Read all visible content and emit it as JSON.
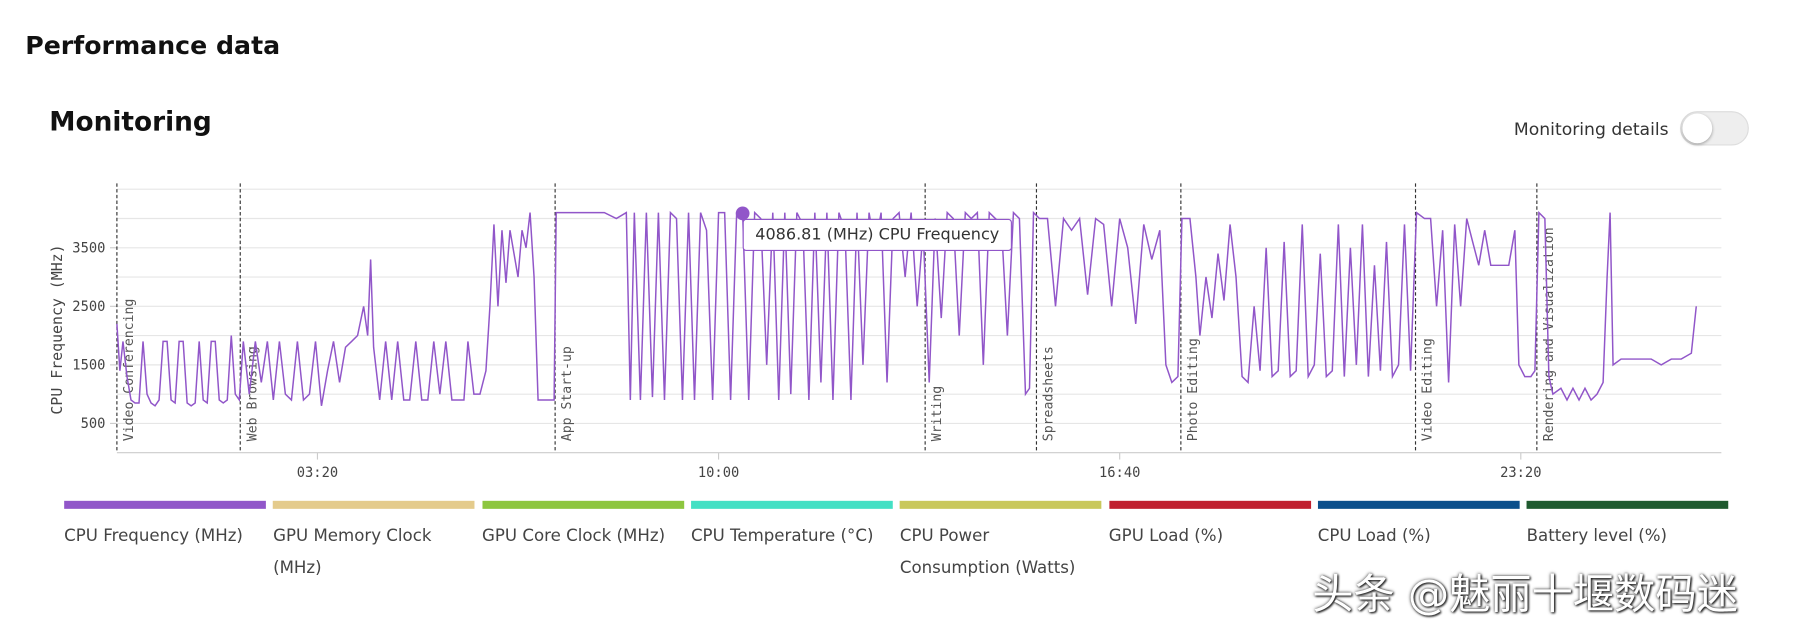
{
  "page_title": "Performance data",
  "section_title": "Monitoring",
  "toggle_label": "Monitoring details",
  "tooltip": "4086.81 (MHz) CPU Frequency",
  "watermark": "头条 @魅丽十堰数码迷",
  "chart_data": {
    "type": "line",
    "ylabel": "CPU Frequency (MHz)",
    "xlim": [
      0,
      1600
    ],
    "ylim": [
      0,
      4600
    ],
    "yticks": [
      500,
      1500,
      2500,
      3500
    ],
    "y_gridlines": [
      500,
      1000,
      1500,
      2000,
      2500,
      3000,
      3500,
      4000,
      4500
    ],
    "xticks": [
      {
        "value": 200,
        "label": "03:20"
      },
      {
        "value": 600,
        "label": "10:00"
      },
      {
        "value": 1000,
        "label": "16:40"
      },
      {
        "value": 1400,
        "label": "23:20"
      }
    ],
    "grid": true,
    "annotations": [
      {
        "x": 0,
        "text": "Video Conferencing"
      },
      {
        "x": 123,
        "text": "Web Browsing"
      },
      {
        "x": 437,
        "text": "App Start-up"
      },
      {
        "x": 806,
        "text": "Writing"
      },
      {
        "x": 917,
        "text": "Spreadsheets"
      },
      {
        "x": 1061,
        "text": "Photo Editing"
      },
      {
        "x": 1295,
        "text": "Video Editing"
      },
      {
        "x": 1416,
        "text": "Rendering and Visualization"
      }
    ],
    "legend": [
      {
        "name": "CPU Frequency (MHz)",
        "color": "#9156c9"
      },
      {
        "name": "GPU Memory Clock (MHz)",
        "color": "#e4cb8c"
      },
      {
        "name": "GPU Core Clock (MHz)",
        "color": "#8dc63f"
      },
      {
        "name": "CPU Temperature (°C)",
        "color": "#43e0c4"
      },
      {
        "name": "CPU Power Consumption (Watts)",
        "color": "#c9c85c"
      },
      {
        "name": "GPU Load (%)",
        "color": "#c0202f"
      },
      {
        "name": "CPU Load (%)",
        "color": "#0b4f8b"
      },
      {
        "name": "Battery level (%)",
        "color": "#1f5a2f"
      }
    ],
    "series": [
      {
        "name": "CPU Frequency (MHz)",
        "color": "#9156c9",
        "x": [
          0,
          3,
          6,
          10,
          14,
          18,
          22,
          26,
          30,
          34,
          38,
          42,
          46,
          50,
          54,
          58,
          62,
          66,
          70,
          74,
          78,
          82,
          86,
          90,
          94,
          98,
          102,
          106,
          110,
          114,
          118,
          122,
          126,
          132,
          138,
          144,
          150,
          156,
          162,
          168,
          174,
          180,
          186,
          192,
          198,
          204,
          210,
          216,
          222,
          228,
          234,
          240,
          246,
          250,
          253,
          256,
          262,
          268,
          274,
          280,
          286,
          292,
          298,
          304,
          310,
          316,
          322,
          328,
          334,
          340,
          346,
          350,
          356,
          362,
          368,
          372,
          376,
          380,
          384,
          388,
          392,
          396,
          400,
          404,
          408,
          412,
          416,
          420,
          426,
          432,
          436,
          438,
          450,
          462,
          474,
          486,
          498,
          508,
          512,
          516,
          522,
          528,
          534,
          540,
          546,
          552,
          558,
          564,
          570,
          576,
          582,
          588,
          594,
          600,
          606,
          612,
          618,
          624,
          630,
          636,
          642,
          648,
          654,
          660,
          666,
          672,
          678,
          684,
          690,
          696,
          702,
          708,
          714,
          720,
          726,
          732,
          738,
          744,
          750,
          756,
          762,
          768,
          774,
          780,
          786,
          792,
          798,
          804,
          810,
          816,
          822,
          828,
          834,
          840,
          846,
          852,
          858,
          864,
          870,
          876,
          882,
          888,
          894,
          900,
          906,
          910,
          914,
          920,
          928,
          936,
          944,
          952,
          960,
          968,
          976,
          984,
          992,
          1000,
          1008,
          1016,
          1024,
          1032,
          1040,
          1046,
          1052,
          1058,
          1062,
          1070,
          1076,
          1080,
          1086,
          1092,
          1098,
          1104,
          1110,
          1116,
          1122,
          1128,
          1134,
          1140,
          1146,
          1152,
          1158,
          1164,
          1170,
          1176,
          1182,
          1188,
          1194,
          1200,
          1206,
          1212,
          1218,
          1224,
          1230,
          1236,
          1242,
          1248,
          1254,
          1260,
          1266,
          1272,
          1278,
          1284,
          1290,
          1296,
          1304,
          1310,
          1316,
          1322,
          1328,
          1334,
          1340,
          1346,
          1352,
          1358,
          1364,
          1370,
          1376,
          1382,
          1388,
          1394,
          1398,
          1404,
          1410,
          1414,
          1418,
          1424,
          1428,
          1432,
          1440,
          1446,
          1452,
          1458,
          1464,
          1470,
          1476,
          1482,
          1486,
          1489,
          1492,
          1500,
          1510,
          1520,
          1530,
          1540,
          1550,
          1560,
          1570,
          1575
        ],
        "values": [
          2200,
          1400,
          1900,
          1300,
          900,
          850,
          850,
          1900,
          1000,
          850,
          800,
          900,
          1900,
          1900,
          900,
          850,
          1900,
          1900,
          850,
          800,
          850,
          1900,
          900,
          850,
          1900,
          1900,
          900,
          850,
          900,
          2000,
          1000,
          900,
          1900,
          1000,
          1900,
          1200,
          1900,
          900,
          1900,
          1000,
          900,
          1900,
          900,
          1000,
          1900,
          800,
          1400,
          1900,
          1200,
          1800,
          1900,
          2000,
          2500,
          2000,
          3300,
          1800,
          900,
          1900,
          900,
          1900,
          900,
          900,
          1900,
          900,
          900,
          1900,
          1000,
          1900,
          900,
          900,
          900,
          1900,
          1000,
          1000,
          1400,
          2500,
          3900,
          2500,
          3800,
          2900,
          3800,
          3400,
          3000,
          3800,
          3500,
          4100,
          3000,
          900,
          900,
          900,
          900,
          4100,
          4100,
          4100,
          4100,
          4100,
          4000,
          4100,
          900,
          4100,
          900,
          4100,
          950,
          4100,
          900,
          4100,
          4000,
          900,
          4100,
          900,
          4100,
          3800,
          900,
          4100,
          4100,
          900,
          4100,
          4086.81,
          900,
          4100,
          4000,
          1500,
          4100,
          900,
          4100,
          1000,
          4100,
          3900,
          900,
          4100,
          1200,
          4100,
          900,
          4100,
          3800,
          900,
          4100,
          1500,
          4100,
          3500,
          4100,
          1200,
          4000,
          4100,
          3000,
          4100,
          2500,
          3800,
          1200,
          4000,
          2300,
          4100,
          4000,
          2000,
          4100,
          4000,
          4100,
          1500,
          4100,
          4000,
          3900,
          2000,
          4100,
          4000,
          1000,
          1100,
          4100,
          4000,
          4000,
          2500,
          4000,
          3800,
          4000,
          2700,
          4000,
          3900,
          2500,
          4000,
          3500,
          2200,
          3900,
          3300,
          3800,
          1500,
          1200,
          1300,
          4000,
          4000,
          3000,
          2000,
          3000,
          2300,
          3400,
          2600,
          3900,
          3000,
          1300,
          1200,
          2500,
          1400,
          3500,
          1300,
          1400,
          3600,
          1300,
          1400,
          3900,
          1300,
          1500,
          3400,
          1300,
          1400,
          3900,
          1300,
          3500,
          1500,
          3900,
          1300,
          3200,
          1400,
          3600,
          1300,
          1500,
          3900,
          1400,
          4100,
          4000,
          4000,
          2500,
          3800,
          1200,
          3900,
          2500,
          4000,
          3600,
          3200,
          3800,
          3200,
          3200,
          3200,
          3200,
          3800,
          1500,
          1300,
          1300,
          1400,
          4100,
          4000,
          1300,
          1000,
          1100,
          900,
          1100,
          900,
          1100,
          900,
          1000,
          1200,
          3000,
          4100,
          1500,
          1600,
          1600,
          1600,
          1600,
          1500,
          1600,
          1600,
          1700,
          2500
        ]
      }
    ]
  }
}
